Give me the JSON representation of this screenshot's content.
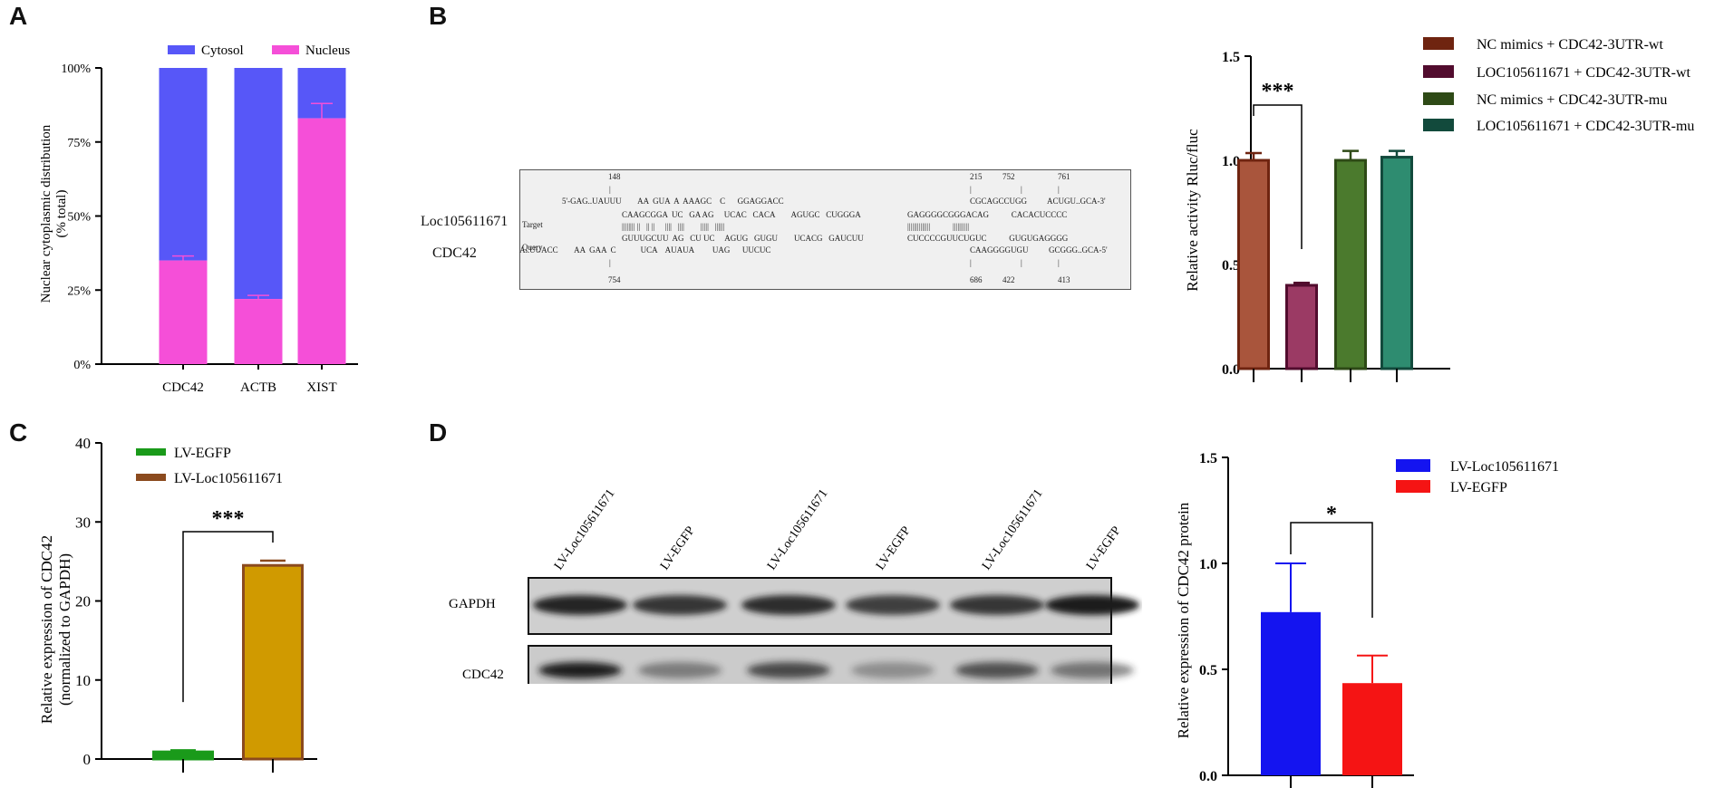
{
  "panel_labels": {
    "a": "A",
    "b": "B",
    "c": "C",
    "d": "D"
  },
  "panelA": {
    "ylabel_line1": "Nuclear cytoplasmic distribution",
    "ylabel_line2": "(% total)",
    "legend": [
      {
        "label": "Cytosol",
        "color": "#5757f8"
      },
      {
        "label": "Nucleus",
        "color": "#f54fd8"
      }
    ],
    "ticks": [
      "0%",
      "25%",
      "50%",
      "75%",
      "100%"
    ]
  },
  "panelB_seq": {
    "row_labels": [
      "Loc105611671",
      "CDC42"
    ],
    "tag_target": "Target",
    "tag_query": "Query",
    "top_numbers": [
      "148",
      "215",
      "752",
      "761"
    ],
    "bottom_numbers": [
      "754",
      "686",
      "422",
      "413"
    ],
    "lines": [
      "5'-GAG..UAUUU        AA  GUA  A  AAAGC    C      GGAGGACC",
      "CAAGCGGA  UC   GA AG     UCAC   CACA        AGUGC   CUGGGA",
      "|||||||| ||   || ||     ||||   ||||        |||||   ||||||",
      "GUUUGCUU  AG   CU UC     AGUG   GUGU        UCACG   GAUCUU",
      "3'-AAA..UUACC        AA  GAA  C            UCA    AUAUA         UAG      UUCUC"
    ],
    "lines_right": [
      "CGCAGCCUGG          ACUGU..GCA-3'",
      "GAGGGGCGGGACAG           CACACUCCCC",
      "||||||||||||||           ||||||||||",
      "CUCCCCGUUCUGUC           GUGUGAGGGG",
      "CAAGGGGUGU          GCGGG..GCA-5'"
    ]
  },
  "panelC": {
    "ylabel_line1": "Relative expression of CDC42",
    "ylabel_line2": "(normalized to GAPDH)",
    "significance": "***",
    "legend": [
      {
        "label": "LV-EGFP",
        "color": "#1a9a1a"
      },
      {
        "label": "LV-Loc105611671",
        "color": "#8b4a1e"
      }
    ]
  },
  "panelD_blot": {
    "lane_labels": [
      "LV-Loc105611671",
      "LV-EGFP",
      "LV-Loc105611671",
      "LV-EGFP",
      "LV-Loc105611671",
      "LV-EGFP"
    ],
    "rows": [
      "GAPDH",
      "CDC42"
    ]
  },
  "chart_data": [
    {
      "id": "A",
      "type": "bar",
      "stacked": true,
      "categories": [
        "CDC42",
        "ACTB",
        "XIST"
      ],
      "series": [
        {
          "name": "Nucleus",
          "values": [
            35,
            22,
            83
          ],
          "error": [
            1.5,
            1.2,
            5
          ],
          "color": "#f54fd8"
        },
        {
          "name": "Cytosol",
          "values": [
            65,
            78,
            17
          ],
          "color": "#5757f8"
        }
      ],
      "ylabel": "Nuclear cytoplasmic distribution (% total)",
      "ylim": [
        0,
        100
      ],
      "legend_position": "top"
    },
    {
      "id": "B",
      "type": "bar",
      "categories": [
        "NC mimics + CDC42-3UTR-wt",
        "LOC105611671 + CDC42-3UTR-wt",
        "NC mimics + CDC42-3UTR-mu",
        "LOC105611671 + CDC42-3UTR-mu"
      ],
      "legend_labels": [
        "NC mimics + CDC42-3UTR-wt",
        "LOC105611671 + CDC42-3UTR-wt",
        "NC mimics + CDC42-3UTR-mu",
        " LOC105611671 + CDC42-3UTR-mu"
      ],
      "values": [
        1.0,
        0.4,
        1.0,
        1.015
      ],
      "error": [
        0.035,
        0.012,
        0.045,
        0.03
      ],
      "fill_colors": [
        "#a9553c",
        "#9b3a64",
        "#4b7a2d",
        "#2e8c70"
      ],
      "edge_colors": [
        "#6f2410",
        "#520c2e",
        "#2e4a16",
        "#124a3c"
      ],
      "ylabel": "Relative activity Rluc/fluc",
      "ylim": [
        0,
        1.5
      ],
      "yticks": [
        "0.0",
        "0.5",
        "1.0",
        "1.5"
      ],
      "significance": "***",
      "legend_position": "right"
    },
    {
      "id": "C",
      "type": "bar",
      "categories": [
        "LV-EGFP",
        "LV-Loc105611671"
      ],
      "values": [
        0.9,
        24.5
      ],
      "error": [
        0.2,
        0.6
      ],
      "fill_colors": [
        "#1a9a1a",
        "#d09a00"
      ],
      "edge_colors": [
        "#1a9a1a",
        "#8b4a1e"
      ],
      "ylabel": "Relative expression of CDC42 (normalized to GAPDH)",
      "ylim": [
        0,
        40
      ],
      "yticks": [
        "0",
        "10",
        "20",
        "30",
        "40"
      ],
      "significance": "***",
      "legend_position": "top-left"
    },
    {
      "id": "D",
      "type": "bar",
      "categories": [
        "LV-Loc105611671",
        "LV-EGFP"
      ],
      "values": [
        0.77,
        0.435
      ],
      "error": [
        0.23,
        0.13
      ],
      "fill_colors": [
        "#1414f0",
        "#f51414"
      ],
      "ylabel": "Relative expression of CDC42 protein",
      "ylim": [
        0,
        1.5
      ],
      "yticks": [
        "0.0",
        "0.5",
        "1.0",
        "1.5"
      ],
      "significance": "*",
      "legend_position": "top-right"
    }
  ]
}
